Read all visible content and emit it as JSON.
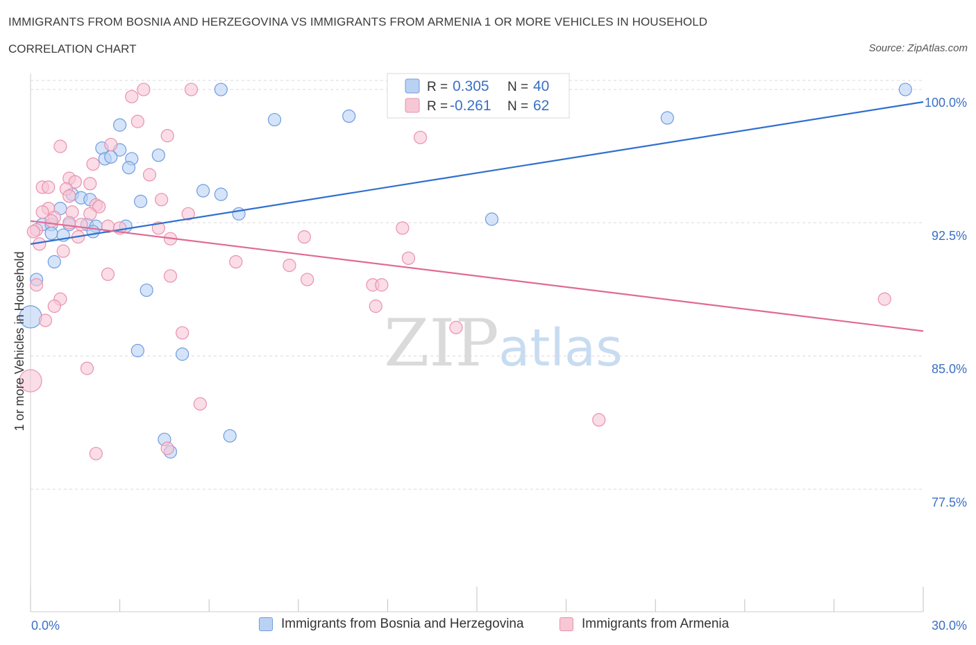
{
  "header": {
    "title": "IMMIGRANTS FROM BOSNIA AND HERZEGOVINA VS IMMIGRANTS FROM ARMENIA 1 OR MORE VEHICLES IN HOUSEHOLD",
    "subtitle": "CORRELATION CHART",
    "source": "Source: ZipAtlas.com"
  },
  "watermark": {
    "zip": "ZIP",
    "atlas": "atlas"
  },
  "stats": [
    {
      "r_label": "R =",
      "r_value": "0.305",
      "n_label": "N =",
      "n_value": "40"
    },
    {
      "r_label": "R =",
      "r_value": "-0.261",
      "n_label": "N =",
      "n_value": "62"
    }
  ],
  "colors": {
    "blue_fill": "#b9d2f3",
    "blue_stroke": "#6f9be0",
    "blue_line": "#2f6fcf",
    "pink_fill": "#f7c7d5",
    "pink_stroke": "#ea90ad",
    "pink_line": "#e06a93",
    "tick_label": "#3a6fc4",
    "grid": "#d9d9d9"
  },
  "chart_data": {
    "type": "scatter",
    "xlabel": "",
    "ylabel": "1 or more Vehicles in Household",
    "xlim": [
      0,
      30
    ],
    "ylim": [
      70.6,
      100.9
    ],
    "x_tick_labels": [
      {
        "value": 0,
        "label": "0.0%"
      },
      {
        "value": 30,
        "label": "30.0%"
      }
    ],
    "y_ticks": [
      {
        "value": 77.5,
        "label": "77.5%"
      },
      {
        "value": 85.0,
        "label": "85.0%"
      },
      {
        "value": 92.5,
        "label": "92.5%"
      },
      {
        "value": 100.0,
        "label": "100.0%"
      }
    ],
    "grid": true,
    "legend_position": "bottom",
    "series": [
      {
        "name": "Immigrants from Bosnia and Herzegovina",
        "color": "blue",
        "trend": {
          "x": [
            0,
            30
          ],
          "y": [
            91.3,
            99.3
          ]
        },
        "points": [
          [
            6.4,
            100.0
          ],
          [
            29.4,
            100.0
          ],
          [
            8.2,
            98.3
          ],
          [
            10.7,
            98.5
          ],
          [
            21.4,
            98.4
          ],
          [
            3.0,
            98.0
          ],
          [
            2.4,
            96.7
          ],
          [
            3.0,
            96.6
          ],
          [
            4.3,
            96.3
          ],
          [
            2.5,
            96.1
          ],
          [
            2.7,
            96.2
          ],
          [
            3.4,
            96.1
          ],
          [
            3.3,
            95.6
          ],
          [
            5.8,
            94.3
          ],
          [
            6.4,
            94.1
          ],
          [
            1.4,
            94.1
          ],
          [
            1.7,
            93.9
          ],
          [
            2.0,
            93.8
          ],
          [
            3.7,
            93.7
          ],
          [
            1.0,
            93.3
          ],
          [
            7.0,
            93.0
          ],
          [
            15.5,
            92.7
          ],
          [
            0.4,
            92.4
          ],
          [
            0.7,
            92.4
          ],
          [
            1.3,
            92.4
          ],
          [
            1.9,
            92.4
          ],
          [
            2.2,
            92.3
          ],
          [
            3.2,
            92.3
          ],
          [
            2.1,
            92.0
          ],
          [
            0.7,
            91.9
          ],
          [
            1.1,
            91.8
          ],
          [
            0.8,
            90.3
          ],
          [
            0.2,
            89.3
          ],
          [
            3.9,
            88.7
          ],
          [
            0.0,
            87.2
          ],
          [
            3.6,
            85.3
          ],
          [
            5.1,
            85.1
          ],
          [
            4.5,
            80.3
          ],
          [
            4.7,
            79.6
          ],
          [
            6.7,
            80.5
          ]
        ]
      },
      {
        "name": "Immigrants from Armenia",
        "color": "pink",
        "trend": {
          "x": [
            0,
            30
          ],
          "y": [
            92.6,
            86.4
          ]
        },
        "points": [
          [
            3.4,
            99.6
          ],
          [
            3.8,
            100.0
          ],
          [
            5.4,
            100.0
          ],
          [
            3.6,
            98.2
          ],
          [
            4.6,
            97.4
          ],
          [
            13.1,
            97.3
          ],
          [
            2.7,
            96.9
          ],
          [
            1.0,
            96.8
          ],
          [
            2.1,
            95.8
          ],
          [
            4.0,
            95.2
          ],
          [
            1.3,
            95.0
          ],
          [
            1.5,
            94.8
          ],
          [
            2.0,
            94.7
          ],
          [
            0.4,
            94.5
          ],
          [
            0.6,
            94.5
          ],
          [
            1.2,
            94.4
          ],
          [
            1.3,
            94.0
          ],
          [
            4.4,
            93.8
          ],
          [
            2.2,
            93.5
          ],
          [
            2.3,
            93.4
          ],
          [
            0.6,
            93.3
          ],
          [
            0.4,
            93.1
          ],
          [
            1.4,
            93.1
          ],
          [
            2.0,
            93.0
          ],
          [
            5.3,
            93.0
          ],
          [
            0.8,
            92.8
          ],
          [
            0.7,
            92.6
          ],
          [
            1.3,
            92.5
          ],
          [
            1.7,
            92.4
          ],
          [
            2.6,
            92.3
          ],
          [
            3.0,
            92.2
          ],
          [
            4.3,
            92.2
          ],
          [
            12.5,
            92.2
          ],
          [
            0.2,
            92.1
          ],
          [
            0.1,
            92.0
          ],
          [
            1.6,
            91.7
          ],
          [
            9.2,
            91.7
          ],
          [
            4.7,
            91.6
          ],
          [
            0.3,
            91.3
          ],
          [
            1.1,
            90.9
          ],
          [
            12.7,
            90.5
          ],
          [
            6.9,
            90.3
          ],
          [
            8.7,
            90.1
          ],
          [
            2.6,
            89.6
          ],
          [
            4.7,
            89.5
          ],
          [
            9.3,
            89.3
          ],
          [
            11.5,
            89.0
          ],
          [
            11.8,
            89.0
          ],
          [
            0.2,
            89.0
          ],
          [
            1.0,
            88.2
          ],
          [
            28.7,
            88.2
          ],
          [
            0.8,
            87.8
          ],
          [
            11.6,
            87.8
          ],
          [
            0.5,
            87.0
          ],
          [
            14.3,
            86.6
          ],
          [
            5.1,
            86.3
          ],
          [
            1.9,
            84.3
          ],
          [
            0.0,
            83.6
          ],
          [
            5.7,
            82.3
          ],
          [
            19.1,
            81.4
          ],
          [
            2.2,
            79.5
          ],
          [
            4.6,
            79.8
          ]
        ]
      }
    ]
  }
}
